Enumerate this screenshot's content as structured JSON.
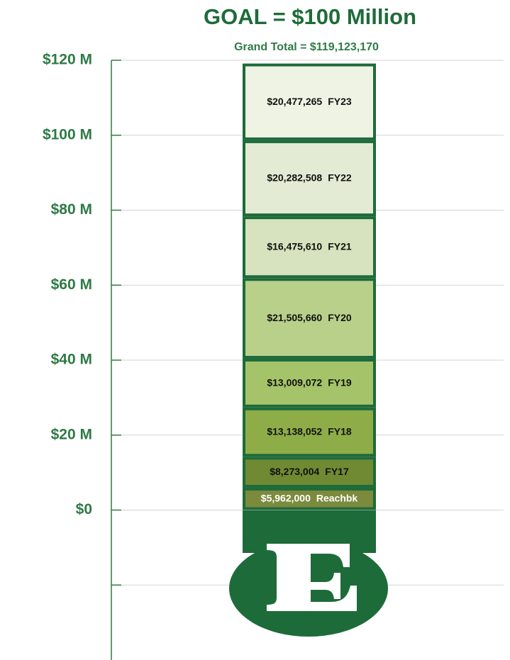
{
  "chart_data": {
    "type": "stacked-bar",
    "title": "GOAL = $100 Million",
    "subtitle": "Grand Total = $119,123,170",
    "categories": [
      "Reachbk",
      "FY17",
      "FY18",
      "FY19",
      "FY20",
      "FY21",
      "FY22",
      "FY23"
    ],
    "values": [
      5.962,
      8.273004,
      13.138052,
      13.009072,
      21.50566,
      16.47561,
      20.282508,
      20.477265
    ],
    "value_labels": [
      "$5,962,000",
      "$8,273,004",
      "$13,138,052",
      "$13,009,072",
      "$21,505,660",
      "$16,475,610",
      "$20,282,508",
      "$20,477,265"
    ],
    "colors": [
      "#7b8a3c",
      "#6f8a32",
      "#8ead48",
      "#a5c46a",
      "#b9d08b",
      "#d6e3be",
      "#e3ebd4",
      "#eef3e4"
    ],
    "label_colors": [
      "#ffffff",
      "#111111",
      "#111111",
      "#111111",
      "#111111",
      "#111111",
      "#111111",
      "#111111"
    ],
    "border_color": "#1e6b3a",
    "ylim": [
      -40,
      120
    ],
    "yticks": [
      {
        "value": -20,
        "label": null
      },
      {
        "value": 0,
        "label": "$0"
      },
      {
        "value": 20,
        "label": "$20 M"
      },
      {
        "value": 40,
        "label": "$40 M"
      },
      {
        "value": 60,
        "label": "$60 M"
      },
      {
        "value": 80,
        "label": "$80 M"
      },
      {
        "value": 100,
        "label": "$100 M"
      },
      {
        "value": 120,
        "label": "$120 M"
      }
    ],
    "grid": true
  }
}
